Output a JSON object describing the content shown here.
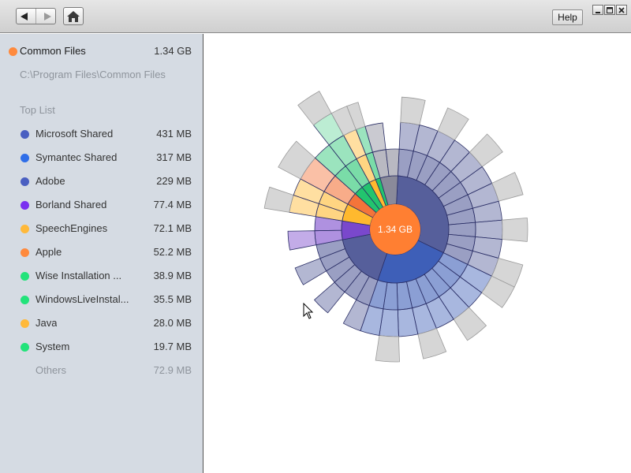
{
  "toolbar": {
    "back_icon": "back-arrow-icon",
    "forward_icon": "forward-arrow-icon",
    "home_icon": "home-icon",
    "help_label": "Help"
  },
  "sidebar": {
    "root": {
      "name": "Common Files",
      "size": "1.34 GB",
      "color": "#ff8a3d"
    },
    "path": "C:\\Program Files\\Common Files",
    "toplist_title": "Top List",
    "items": [
      {
        "label": "Microsoft Shared",
        "size": "431 MB",
        "color": "#4a5fc1"
      },
      {
        "label": "Symantec Shared",
        "size": "317 MB",
        "color": "#2f6ee8"
      },
      {
        "label": "Adobe",
        "size": "229 MB",
        "color": "#4a5fc1"
      },
      {
        "label": "Borland Shared",
        "size": "77.4 MB",
        "color": "#7a2ff0"
      },
      {
        "label": "SpeechEngines",
        "size": "72.1 MB",
        "color": "#ffb93a"
      },
      {
        "label": "Apple",
        "size": "52.2 MB",
        "color": "#ff8a3d"
      },
      {
        "label": "Wise Installation ...",
        "size": "38.9 MB",
        "color": "#22e37a"
      },
      {
        "label": "WindowsLiveInstal...",
        "size": "35.5 MB",
        "color": "#22e37a"
      },
      {
        "label": "Java",
        "size": "28.0 MB",
        "color": "#ffb93a"
      },
      {
        "label": "System",
        "size": "19.7 MB",
        "color": "#22e37a"
      }
    ],
    "others": {
      "label": "Others",
      "size": "72.9 MB"
    }
  },
  "chart_data": {
    "type": "sunburst",
    "center_label": "1.34 GB",
    "segments": [
      {
        "name": "Microsoft Shared",
        "size_mb": 431,
        "color": "#565f9b"
      },
      {
        "name": "Symantec Shared",
        "size_mb": 317,
        "color": "#3e5fb8"
      },
      {
        "name": "Adobe",
        "size_mb": 229,
        "color": "#565f9b"
      },
      {
        "name": "Borland Shared",
        "size_mb": 77.4,
        "color": "#7a48cc"
      },
      {
        "name": "SpeechEngines",
        "size_mb": 72.1,
        "color": "#ffb92e"
      },
      {
        "name": "Apple",
        "size_mb": 52.2,
        "color": "#f4743a"
      },
      {
        "name": "Wise Installation ...",
        "size_mb": 38.9,
        "color": "#22c46e"
      },
      {
        "name": "WindowsLiveInstal...",
        "size_mb": 35.5,
        "color": "#22c46e"
      },
      {
        "name": "Java",
        "size_mb": 28.0,
        "color": "#ffb92e"
      },
      {
        "name": "System",
        "size_mb": 19.7,
        "color": "#22c46e"
      },
      {
        "name": "Others",
        "size_mb": 72.9,
        "color": "#8a8a9a"
      }
    ],
    "center_color": "#ff7f32"
  }
}
